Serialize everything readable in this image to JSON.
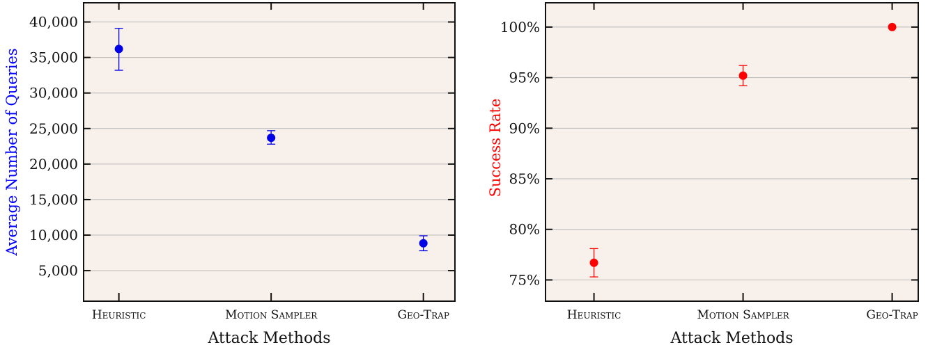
{
  "chart_data": [
    {
      "type": "scatter",
      "title": "",
      "xlabel": "Attack Methods",
      "ylabel": "Average Number of Queries",
      "ylabel_color": "#0000ff",
      "marker_color": "#0000e6",
      "categories": [
        "Heuristic",
        "Motion Sampler",
        "Geo-Trap"
      ],
      "values": [
        36200,
        23700,
        8850
      ],
      "error_low": [
        33200,
        22800,
        7800
      ],
      "error_high": [
        39100,
        24700,
        9900
      ],
      "ylim": [
        700,
        42700
      ],
      "yticks": [
        5000,
        10000,
        15000,
        20000,
        25000,
        30000,
        35000,
        40000
      ],
      "ytick_labels": [
        "5,000",
        "10,000",
        "15,000",
        "20,000",
        "25,000",
        "30,000",
        "35,000",
        "40,000"
      ],
      "grid": true,
      "background": "#f7f0eb"
    },
    {
      "type": "scatter",
      "title": "",
      "xlabel": "Attack Methods",
      "ylabel": "Success Rate",
      "ylabel_color": "#ff0000",
      "marker_color": "#ff0000",
      "categories": [
        "Heuristic",
        "Motion Sampler",
        "Geo-Trap"
      ],
      "values": [
        76.7,
        95.2,
        100
      ],
      "error_low": [
        75.3,
        94.2,
        100
      ],
      "error_high": [
        78.1,
        96.2,
        100
      ],
      "ylim": [
        72.9,
        102.4
      ],
      "yticks": [
        75,
        80,
        85,
        90,
        95,
        100
      ],
      "ytick_labels": [
        "75%",
        "80%",
        "85%",
        "90%",
        "95%",
        "100%"
      ],
      "grid": true,
      "background": "#f7f0eb"
    }
  ]
}
